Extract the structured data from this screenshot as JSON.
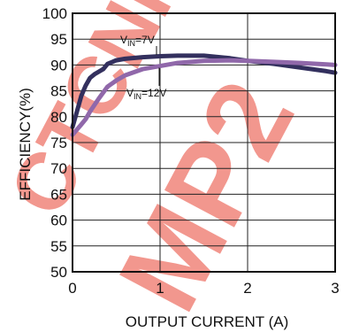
{
  "chart_data": {
    "type": "line",
    "xlabel": "OUTPUT CURRENT (A)",
    "ylabel": "EFFICIENCY(%)",
    "xlim": [
      0,
      3
    ],
    "ylim": [
      50,
      100
    ],
    "xticks": [
      0,
      1,
      2,
      3
    ],
    "yticks": [
      50,
      55,
      60,
      65,
      70,
      75,
      80,
      85,
      90,
      95,
      100
    ],
    "grid": true,
    "series": [
      {
        "name": "V_IN=7V",
        "color": "#33305e",
        "x": [
          0,
          0.05,
          0.1,
          0.15,
          0.2,
          0.25,
          0.3,
          0.35,
          0.4,
          0.5,
          0.6,
          0.8,
          1.0,
          1.2,
          1.5,
          1.8,
          2.0,
          2.3,
          2.6,
          2.9,
          3.0
        ],
        "y": [
          78,
          81,
          84,
          86,
          87.5,
          88.2,
          88.7,
          89.2,
          90.2,
          90.9,
          91.2,
          91.5,
          91.7,
          91.8,
          91.8,
          91.3,
          90.8,
          90.2,
          89.5,
          88.8,
          88.5
        ]
      },
      {
        "name": "V_IN=12V",
        "color": "#9068aa",
        "x": [
          0,
          0.05,
          0.1,
          0.15,
          0.2,
          0.3,
          0.4,
          0.5,
          0.6,
          0.8,
          1.0,
          1.2,
          1.5,
          1.8,
          2.0,
          2.3,
          2.6,
          2.9,
          3.0
        ],
        "y": [
          76.5,
          77.5,
          78.5,
          79.5,
          81,
          83.5,
          85.8,
          87,
          88,
          89.2,
          89.8,
          90.4,
          90.8,
          90.9,
          90.8,
          90.6,
          90.4,
          90.1,
          90
        ]
      }
    ],
    "annotations": [
      {
        "main": "V",
        "sub": "IN",
        "rest": "=7V",
        "series": 0
      },
      {
        "main": "V",
        "sub": "IN",
        "rest": "=12V",
        "series": 1
      }
    ]
  },
  "watermark": {
    "text_left": "CTCNF",
    "text_right": "MP2",
    "color": "#f0857a"
  }
}
